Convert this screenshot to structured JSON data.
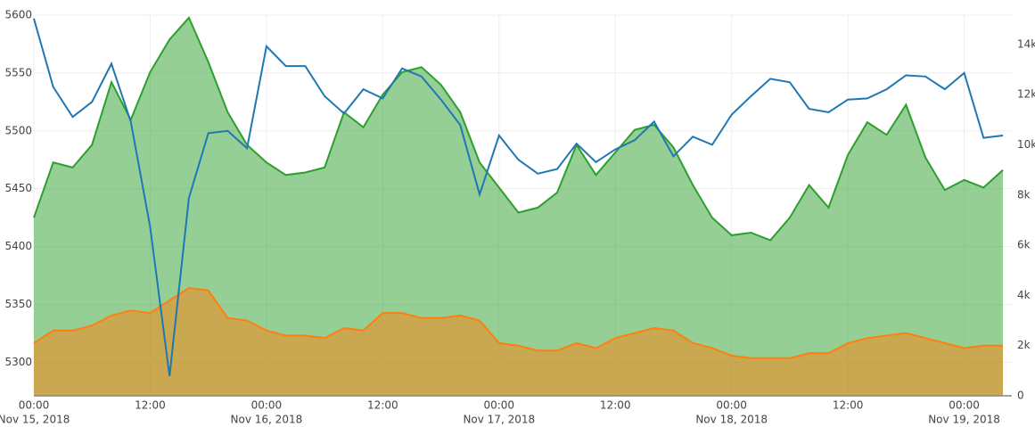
{
  "chart_data": {
    "type": "line",
    "x": [
      "2018-11-15 00:00",
      "2018-11-15 02:00",
      "2018-11-15 04:00",
      "2018-11-15 06:00",
      "2018-11-15 08:00",
      "2018-11-15 10:00",
      "2018-11-15 12:00",
      "2018-11-15 14:00",
      "2018-11-15 16:00",
      "2018-11-15 18:00",
      "2018-11-15 20:00",
      "2018-11-15 22:00",
      "2018-11-16 00:00",
      "2018-11-16 02:00",
      "2018-11-16 04:00",
      "2018-11-16 06:00",
      "2018-11-16 08:00",
      "2018-11-16 10:00",
      "2018-11-16 12:00",
      "2018-11-16 14:00",
      "2018-11-16 16:00",
      "2018-11-16 18:00",
      "2018-11-16 20:00",
      "2018-11-16 22:00",
      "2018-11-17 00:00",
      "2018-11-17 02:00",
      "2018-11-17 04:00",
      "2018-11-17 06:00",
      "2018-11-17 08:00",
      "2018-11-17 10:00",
      "2018-11-17 12:00",
      "2018-11-17 14:00",
      "2018-11-17 16:00",
      "2018-11-17 18:00",
      "2018-11-17 20:00",
      "2018-11-17 22:00",
      "2018-11-18 00:00",
      "2018-11-18 02:00",
      "2018-11-18 04:00",
      "2018-11-18 06:00",
      "2018-11-18 08:00",
      "2018-11-18 10:00",
      "2018-11-18 12:00",
      "2018-11-18 14:00",
      "2018-11-18 16:00",
      "2018-11-18 18:00",
      "2018-11-18 20:00",
      "2018-11-18 22:00",
      "2018-11-19 00:00",
      "2018-11-19 02:00",
      "2018-11-19 04:00"
    ],
    "series": [
      {
        "color": "#2ca02c",
        "fill": "rgba(44,160,44,0.5)",
        "axis": "y2",
        "values": [
          7100,
          9300,
          9100,
          10000,
          12500,
          11000,
          12900,
          14200,
          15070,
          13300,
          11300,
          10000,
          9300,
          8800,
          8900,
          9100,
          11300,
          10700,
          12000,
          12900,
          13100,
          12400,
          11300,
          9300,
          8300,
          7300,
          7500,
          8100,
          10000,
          8800,
          9700,
          10600,
          10800,
          9900,
          8400,
          7100,
          6400,
          6500,
          6200,
          7100,
          8400,
          7500,
          9600,
          10900,
          10400,
          11600,
          9500,
          8200,
          8600,
          8300,
          9000
        ]
      },
      {
        "color": "#ff7f0e",
        "fill": "rgba(255,127,14,0.5)",
        "axis": "y2",
        "values": [
          2100,
          2600,
          2600,
          2800,
          3200,
          3400,
          3300,
          3800,
          4300,
          4200,
          3100,
          3000,
          2600,
          2400,
          2400,
          2300,
          2700,
          2600,
          3300,
          3300,
          3100,
          3100,
          3200,
          3000,
          2100,
          2000,
          1800,
          1800,
          2100,
          1900,
          2300,
          2500,
          2700,
          2600,
          2100,
          1900,
          1600,
          1500,
          1500,
          1500,
          1700,
          1700,
          2100,
          2300,
          2400,
          2500,
          2300,
          2100,
          1900,
          2000,
          2000
        ]
      },
      {
        "color": "#1f77b4",
        "values": [
          5597,
          5538,
          5512,
          5525,
          5558,
          5508,
          5417,
          5288,
          5442,
          5498,
          5500,
          5485,
          5573,
          5556,
          5556,
          5530,
          5515,
          5536,
          5528,
          5554,
          5547,
          5527,
          5505,
          5445,
          5496,
          5475,
          5463,
          5467,
          5489,
          5473,
          5484,
          5492,
          5508,
          5478,
          5495,
          5488,
          5514,
          5530,
          5545,
          5542,
          5519,
          5516,
          5527,
          5528,
          5536,
          5548,
          5547,
          5536,
          5550,
          5494,
          5496
        ]
      }
    ],
    "xlim": [
      "2018-11-15 00:00",
      "2018-11-19 04:55"
    ],
    "xticks": [
      {
        "value": "2018-11-15 00:00",
        "label": "00:00",
        "sublabel": "Nov 15, 2018"
      },
      {
        "value": "2018-11-15 12:00",
        "label": "12:00"
      },
      {
        "value": "2018-11-16 00:00",
        "label": "00:00",
        "sublabel": "Nov 16, 2018"
      },
      {
        "value": "2018-11-16 12:00",
        "label": "12:00"
      },
      {
        "value": "2018-11-17 00:00",
        "label": "00:00",
        "sublabel": "Nov 17, 2018"
      },
      {
        "value": "2018-11-17 12:00",
        "label": "12:00"
      },
      {
        "value": "2018-11-18 00:00",
        "label": "00:00",
        "sublabel": "Nov 18, 2018"
      },
      {
        "value": "2018-11-18 12:00",
        "label": "12:00"
      },
      {
        "value": "2018-11-19 00:00",
        "label": "00:00",
        "sublabel": "Nov 19, 2018"
      }
    ],
    "ylim": [
      5271,
      5600
    ],
    "yticks": [
      5300,
      5350,
      5400,
      5450,
      5500,
      5550,
      5600
    ],
    "y2lim": [
      0,
      15170
    ],
    "y2ticks": [
      0,
      {
        "value": 2000,
        "label": "2k"
      },
      {
        "value": 4000,
        "label": "4k"
      },
      {
        "value": 6000,
        "label": "6k"
      },
      {
        "value": 8000,
        "label": "8k"
      },
      {
        "value": 10000,
        "label": "10k"
      },
      {
        "value": 12000,
        "label": "12k"
      },
      {
        "value": 14000,
        "label": "14k"
      }
    ],
    "grid": true
  }
}
